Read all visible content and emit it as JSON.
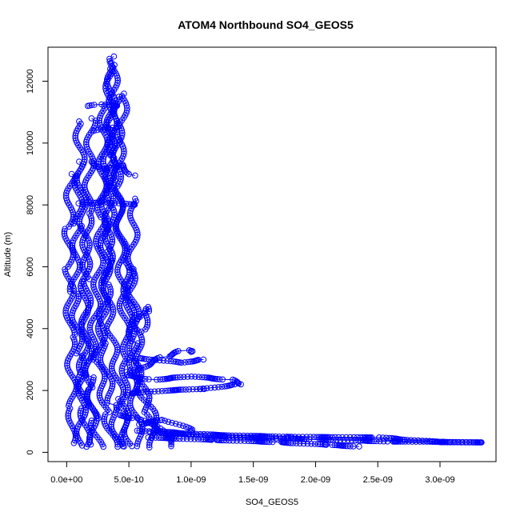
{
  "chart_data": {
    "type": "scatter",
    "title": "ATOM4 Northbound SO4_GEOS5",
    "xlabel": "SO4_GEOS5",
    "ylabel": "Altitude (m)",
    "xlim": [
      -1.5e-10,
      3.45e-09
    ],
    "ylim": [
      -300,
      13100
    ],
    "x_ticks": [
      0,
      5e-10,
      1e-09,
      1.5e-09,
      2e-09,
      2.5e-09,
      3e-09
    ],
    "x_tick_labels": [
      "0.0e+00",
      "5.0e-10",
      "1.0e-09",
      "1.5e-09",
      "2.0e-09",
      "2.5e-09",
      "3.0e-09"
    ],
    "y_ticks": [
      0,
      2000,
      4000,
      6000,
      8000,
      10000,
      12000
    ],
    "y_tick_labels": [
      "0",
      "2000",
      "4000",
      "6000",
      "8000",
      "10000",
      "12000"
    ],
    "grid": false,
    "legend": "none",
    "marker": "open-circle",
    "connected": true,
    "series_color": "#0000ff",
    "profiles": [
      [
        [
          1.6e-10,
          180
        ],
        [
          1.4e-10,
          1500
        ],
        [
          1e-10,
          3200
        ],
        [
          6e-11,
          5200
        ],
        [
          9e-11,
          7400
        ],
        [
          1e-10,
          9400
        ]
      ],
      [
        [
          3.8e-10,
          180
        ],
        [
          3.2e-10,
          1300
        ],
        [
          2.5e-10,
          3000
        ],
        [
          3.3e-10,
          5500
        ],
        [
          3.6e-10,
          9000
        ],
        [
          3.8e-10,
          12800
        ]
      ],
      [
        [
          4.2e-10,
          200
        ],
        [
          3.6e-10,
          1600
        ],
        [
          2.8e-10,
          3600
        ],
        [
          3.3e-10,
          6500
        ],
        [
          3.5e-10,
          9600
        ],
        [
          3.6e-10,
          12600
        ]
      ],
      [
        [
          5.2e-10,
          200
        ],
        [
          4.3e-10,
          1800
        ],
        [
          3.5e-10,
          4000
        ],
        [
          3e-10,
          7000
        ],
        [
          3.4e-10,
          10500
        ],
        [
          3.5e-10,
          12400
        ]
      ],
      [
        [
          2.2e-10,
          250
        ],
        [
          1.9e-10,
          2100
        ],
        [
          1.4e-10,
          4600
        ],
        [
          1.7e-10,
          7800
        ],
        [
          2e-10,
          10800
        ]
      ],
      [
        [
          6e-10,
          200
        ],
        [
          5.3e-10,
          1900
        ],
        [
          5.4e-10,
          3600
        ],
        [
          4.6e-10,
          6200
        ],
        [
          4e-10,
          8600
        ],
        [
          4.2e-10,
          11500
        ]
      ],
      [
        [
          8.5e-10,
          200
        ],
        [
          7.2e-10,
          900
        ],
        [
          5.8e-10,
          2200
        ],
        [
          5e-10,
          4300
        ],
        [
          5.5e-10,
          8200
        ]
      ],
      [
        [
          3.5e-11,
          300
        ],
        [
          5e-11,
          1500
        ],
        [
          3e-11,
          3800
        ],
        [
          2e-11,
          6000
        ],
        [
          1.5e-11,
          7300
        ],
        [
          4e-11,
          9000
        ]
      ],
      [
        [
          2.6e-10,
          180
        ],
        [
          2.2e-10,
          1100
        ],
        [
          1.8e-10,
          2500
        ],
        [
          2.4e-10,
          4800
        ],
        [
          2.8e-10,
          7600
        ],
        [
          3e-10,
          11200
        ]
      ],
      [
        [
          1.1e-10,
          220
        ],
        [
          1.3e-10,
          2600
        ],
        [
          1.7e-10,
          5600
        ],
        [
          1.2e-10,
          8400
        ],
        [
          1e-10,
          10700
        ]
      ],
      [
        [
          4.8e-10,
          190
        ],
        [
          4.4e-10,
          1400
        ],
        [
          4.9e-10,
          3100
        ],
        [
          4.5e-10,
          5200
        ],
        [
          4.1e-10,
          8800
        ],
        [
          4.6e-10,
          11600
        ]
      ],
      [
        [
          7e-10,
          160
        ],
        [
          6.5e-10,
          1300
        ],
        [
          5.9e-10,
          2800
        ],
        [
          5.6e-10,
          4100
        ],
        [
          5e-10,
          6000
        ]
      ],
      [
        [
          5e-10,
          2600
        ],
        [
          8e-10,
          3100
        ],
        [
          9.5e-10,
          3300
        ],
        [
          1e-09,
          3250
        ]
      ],
      [
        [
          5.5e-10,
          4300
        ],
        [
          6.2e-10,
          4700
        ],
        [
          6.4e-10,
          4500
        ],
        [
          6e-10,
          3900
        ]
      ],
      [
        [
          4.5e-10,
          2500
        ],
        [
          7e-10,
          2350
        ],
        [
          1e-09,
          2450
        ],
        [
          1.3e-09,
          2350
        ],
        [
          1.4e-09,
          2200
        ]
      ],
      [
        [
          5e-10,
          1900
        ],
        [
          8e-10,
          2000
        ],
        [
          1.1e-09,
          2050
        ],
        [
          1.35e-09,
          2200
        ]
      ],
      [
        [
          6e-10,
          3050
        ],
        [
          9e-10,
          2900
        ],
        [
          1.1e-09,
          3000
        ]
      ],
      [
        [
          6e-10,
          700
        ],
        [
          1.2e-09,
          560
        ],
        [
          1.8e-09,
          500
        ],
        [
          2.5e-09,
          480
        ],
        [
          3e-09,
          330
        ],
        [
          3.33e-09,
          320
        ]
      ],
      [
        [
          7e-10,
          650
        ],
        [
          1.3e-09,
          500
        ],
        [
          2e-09,
          420
        ],
        [
          2.6e-09,
          350
        ],
        [
          3e-09,
          340
        ],
        [
          3.3e-09,
          320
        ]
      ],
      [
        [
          6.5e-10,
          480
        ],
        [
          1.2e-09,
          400
        ],
        [
          1.7e-09,
          330
        ],
        [
          2.1e-09,
          240
        ],
        [
          2.35e-09,
          190
        ]
      ],
      [
        [
          5.5e-10,
          900
        ],
        [
          8e-10,
          1050
        ],
        [
          1e-09,
          700
        ]
      ],
      [
        [
          4e-10,
          1200
        ],
        [
          5.8e-10,
          1100
        ],
        [
          7.5e-10,
          650
        ],
        [
          8.5e-10,
          480
        ]
      ],
      [
        [
          2e-10,
          9400
        ],
        [
          3.3e-10,
          9150
        ],
        [
          4.3e-10,
          9300
        ],
        [
          5.5e-10,
          8950
        ]
      ],
      [
        [
          2e-10,
          11200
        ],
        [
          2.7e-10,
          11250
        ],
        [
          4e-10,
          11200
        ]
      ],
      [
        [
          2.5e-10,
          10400
        ],
        [
          3.4e-10,
          10500
        ],
        [
          4e-10,
          10500
        ]
      ],
      [
        [
          1e-10,
          8050
        ],
        [
          3e-10,
          8100
        ],
        [
          5.4e-10,
          8000
        ]
      ]
    ]
  }
}
